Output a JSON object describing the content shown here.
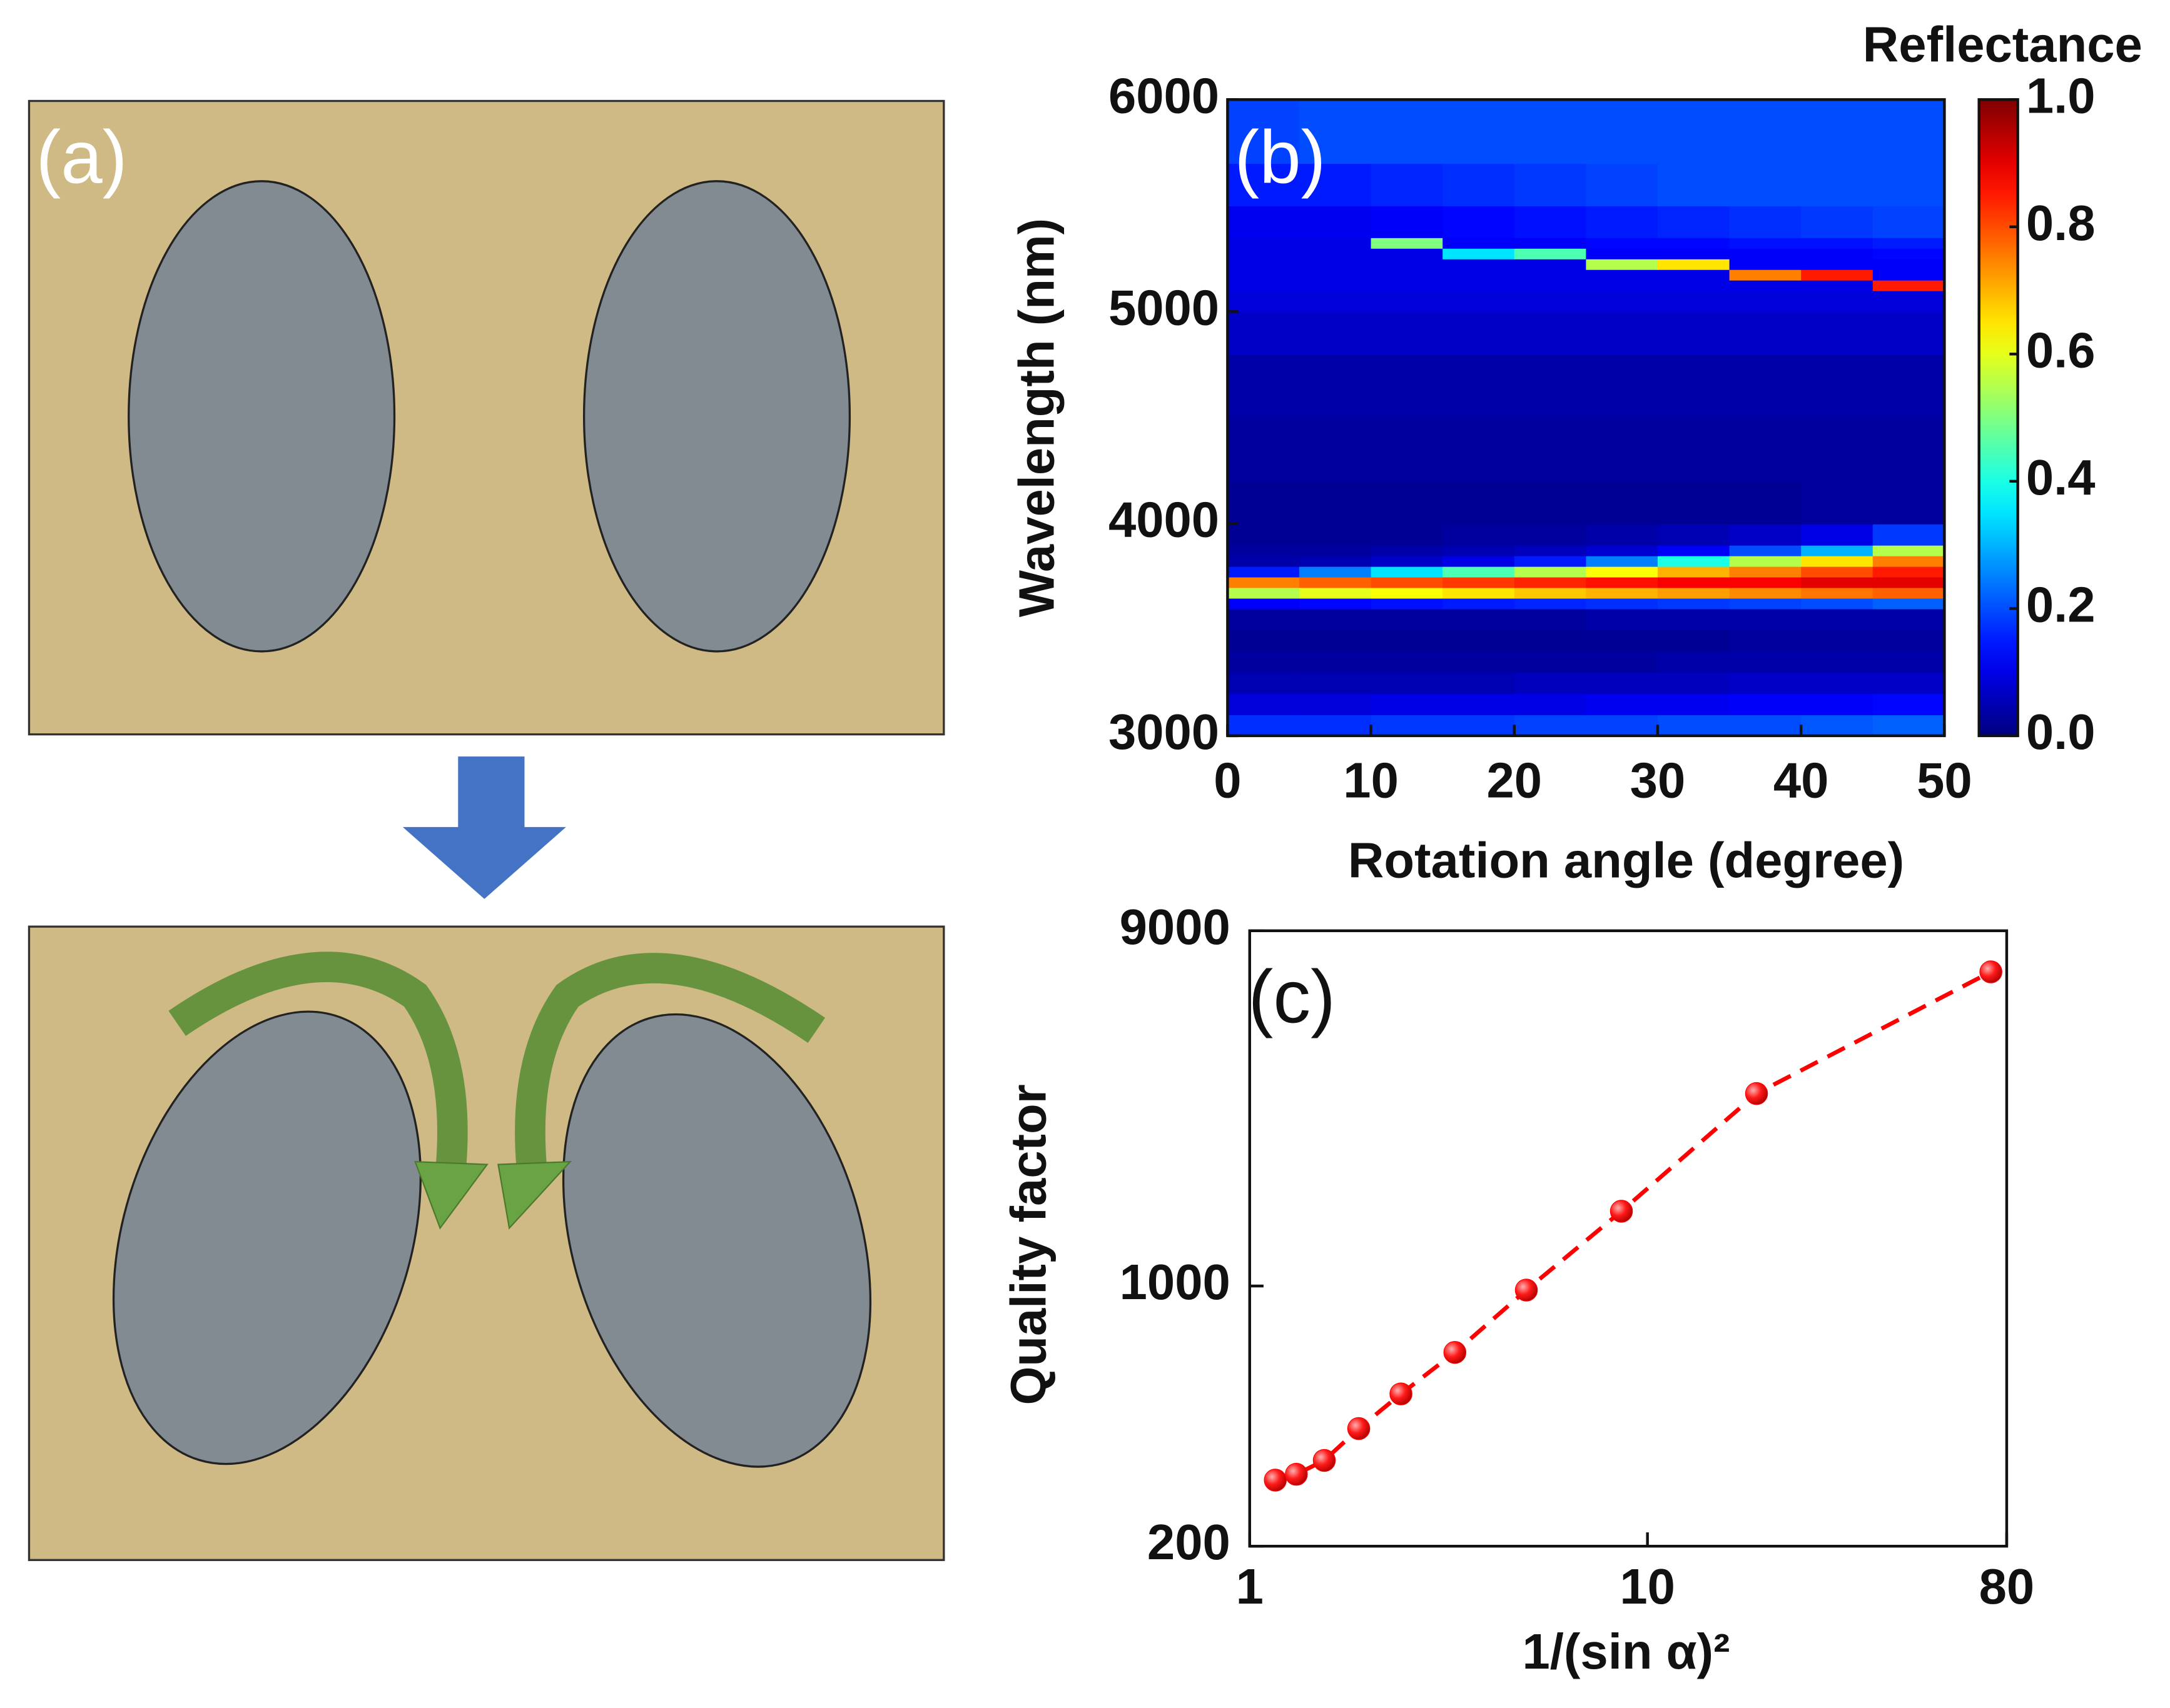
{
  "panel_a": {
    "label": "(a)"
  },
  "chart_data": [
    {
      "type": "heatmap",
      "annotation": "(b)",
      "xlabel": "Rotation angle (degree)",
      "ylabel": "Wavelength (nm)",
      "colorbar_label": "Reflectance",
      "colormap": "jet",
      "xbins": [
        0,
        5,
        10,
        15,
        20,
        25,
        30,
        35,
        40,
        45,
        50
      ],
      "ybins": [
        3000,
        3100,
        3200,
        3300,
        3400,
        3500,
        3600,
        3650,
        3700,
        3750,
        3800,
        3850,
        3900,
        4000,
        4200,
        4500,
        4800,
        5000,
        5100,
        5150,
        5200,
        5250,
        5300,
        5350,
        5500,
        5700,
        6000
      ],
      "z": [
        [
          0.17,
          0.17,
          0.18,
          0.18,
          0.19,
          0.19,
          0.2,
          0.2,
          0.21,
          0.22
        ],
        [
          0.09,
          0.09,
          0.1,
          0.1,
          0.1,
          0.11,
          0.11,
          0.12,
          0.12,
          0.13
        ],
        [
          0.05,
          0.05,
          0.05,
          0.05,
          0.06,
          0.06,
          0.06,
          0.07,
          0.07,
          0.07
        ],
        [
          0.03,
          0.03,
          0.03,
          0.03,
          0.03,
          0.03,
          0.04,
          0.04,
          0.04,
          0.04
        ],
        [
          0.02,
          0.02,
          0.02,
          0.02,
          0.02,
          0.02,
          0.02,
          0.03,
          0.03,
          0.03
        ],
        [
          0.03,
          0.03,
          0.03,
          0.03,
          0.03,
          0.04,
          0.04,
          0.04,
          0.04,
          0.04
        ],
        [
          0.12,
          0.13,
          0.14,
          0.15,
          0.16,
          0.17,
          0.18,
          0.19,
          0.2,
          0.22
        ],
        [
          0.55,
          0.6,
          0.62,
          0.65,
          0.68,
          0.7,
          0.72,
          0.74,
          0.76,
          0.78
        ],
        [
          0.75,
          0.78,
          0.8,
          0.82,
          0.84,
          0.86,
          0.88,
          0.88,
          0.9,
          0.9
        ],
        [
          0.15,
          0.25,
          0.35,
          0.45,
          0.55,
          0.62,
          0.7,
          0.75,
          0.8,
          0.85
        ],
        [
          0.04,
          0.05,
          0.07,
          0.1,
          0.15,
          0.25,
          0.4,
          0.55,
          0.65,
          0.75
        ],
        [
          0.03,
          0.03,
          0.04,
          0.05,
          0.06,
          0.08,
          0.12,
          0.2,
          0.3,
          0.55
        ],
        [
          0.02,
          0.02,
          0.02,
          0.03,
          0.03,
          0.04,
          0.05,
          0.07,
          0.1,
          0.18
        ],
        [
          0.02,
          0.02,
          0.02,
          0.02,
          0.02,
          0.02,
          0.02,
          0.02,
          0.03,
          0.03
        ],
        [
          0.03,
          0.03,
          0.03,
          0.03,
          0.03,
          0.03,
          0.03,
          0.03,
          0.03,
          0.03
        ],
        [
          0.04,
          0.04,
          0.04,
          0.04,
          0.04,
          0.04,
          0.04,
          0.04,
          0.04,
          0.04
        ],
        [
          0.07,
          0.07,
          0.07,
          0.07,
          0.07,
          0.07,
          0.07,
          0.07,
          0.07,
          0.07
        ],
        [
          0.09,
          0.09,
          0.09,
          0.09,
          0.09,
          0.09,
          0.09,
          0.09,
          0.09,
          0.09
        ],
        [
          0.1,
          0.1,
          0.1,
          0.1,
          0.1,
          0.1,
          0.1,
          0.1,
          0.1,
          0.85
        ],
        [
          0.1,
          0.1,
          0.1,
          0.1,
          0.1,
          0.1,
          0.1,
          0.75,
          0.85,
          0.12
        ],
        [
          0.1,
          0.1,
          0.1,
          0.1,
          0.1,
          0.55,
          0.65,
          0.12,
          0.12,
          0.12
        ],
        [
          0.1,
          0.1,
          0.1,
          0.35,
          0.45,
          0.12,
          0.12,
          0.12,
          0.12,
          0.13
        ],
        [
          0.1,
          0.1,
          0.5,
          0.12,
          0.12,
          0.13,
          0.13,
          0.14,
          0.14,
          0.15
        ],
        [
          0.11,
          0.11,
          0.12,
          0.13,
          0.14,
          0.15,
          0.16,
          0.17,
          0.18,
          0.19
        ],
        [
          0.15,
          0.15,
          0.16,
          0.17,
          0.18,
          0.19,
          0.2,
          0.2,
          0.2,
          0.2
        ],
        [
          0.19,
          0.2,
          0.2,
          0.2,
          0.2,
          0.2,
          0.2,
          0.2,
          0.2,
          0.2
        ]
      ],
      "xlim": [
        0,
        50
      ],
      "xticks": [
        0,
        10,
        20,
        30,
        40,
        50
      ],
      "ylim": [
        3000,
        6000
      ],
      "yticks": [
        3000,
        4000,
        5000,
        6000
      ],
      "clim": [
        0,
        1
      ],
      "cticks": [
        {
          "value": 0,
          "label": "0.0"
        },
        0.2,
        0.4,
        0.6,
        0.8,
        {
          "value": 1,
          "label": "1.0"
        }
      ]
    },
    {
      "type": "line",
      "annotation": "(c)",
      "xlabel": "1/(sin α)²",
      "ylabel": "Quality factor",
      "x": [
        1.16,
        1.31,
        1.54,
        1.88,
        2.4,
        3.28,
        4.96,
        8.6,
        18.8,
        73
      ],
      "values": [
        301,
        312,
        340,
        414,
        513,
        663,
        975,
        1588,
        3288,
        6980
      ],
      "color": "#ff0000",
      "line_style": "dashed",
      "xscale": "log",
      "yscale": "log",
      "xlim": [
        1,
        80
      ],
      "xticks": [
        1,
        10,
        80
      ],
      "ylim": [
        200,
        9000
      ],
      "yticks": [
        200,
        1000,
        9000
      ]
    }
  ]
}
